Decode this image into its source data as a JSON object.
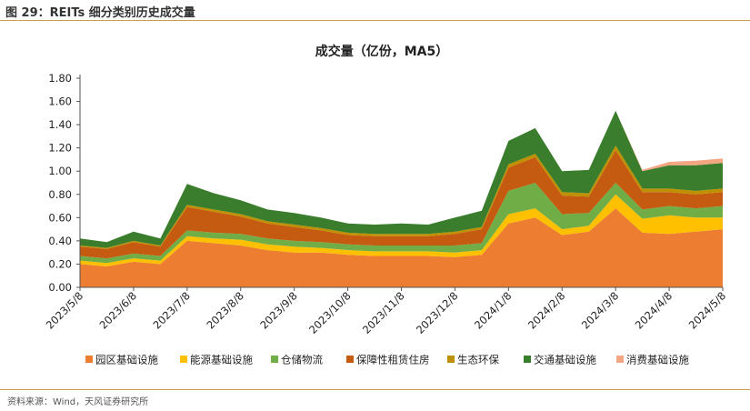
{
  "figure_caption": "图 29：REITs 细分类别历史成交量",
  "source_note": "资料来源：Wind，天风证券研究所",
  "chart_data": {
    "type": "area",
    "stacked": true,
    "title": "成交量（亿份，MA5）",
    "xlabel": "",
    "ylabel": "",
    "ylim": [
      0,
      1.8
    ],
    "yticks": [
      "0.00",
      "0.20",
      "0.40",
      "0.60",
      "0.80",
      "1.00",
      "1.20",
      "1.40",
      "1.60",
      "1.80"
    ],
    "xticks": [
      "2023/5/8",
      "2023/6/8",
      "2023/7/8",
      "2023/8/8",
      "2023/9/8",
      "2023/10/8",
      "2023/11/8",
      "2023/12/8",
      "2024/1/8",
      "2024/2/8",
      "2024/3/8",
      "2024/4/8",
      "2024/5/8"
    ],
    "legend_position": "bottom",
    "grid": false,
    "x": [
      "2023/5/8",
      "2023/5/22",
      "2023/6/8",
      "2023/6/22",
      "2023/7/8",
      "2023/7/22",
      "2023/8/8",
      "2023/8/22",
      "2023/9/8",
      "2023/9/22",
      "2023/10/8",
      "2023/10/22",
      "2023/11/8",
      "2023/11/22",
      "2023/12/8",
      "2023/12/22",
      "2024/1/8",
      "2024/1/22",
      "2024/2/8",
      "2024/2/22",
      "2024/3/8",
      "2024/3/22",
      "2024/4/8",
      "2024/4/22",
      "2024/5/8"
    ],
    "series": [
      {
        "name": "园区基础设施",
        "color": "#ED7D31",
        "values": [
          0.2,
          0.18,
          0.22,
          0.2,
          0.4,
          0.38,
          0.36,
          0.32,
          0.3,
          0.3,
          0.28,
          0.27,
          0.27,
          0.27,
          0.26,
          0.28,
          0.55,
          0.6,
          0.45,
          0.48,
          0.68,
          0.47,
          0.46,
          0.48,
          0.5
        ]
      },
      {
        "name": "能源基础设施",
        "color": "#FFC000",
        "values": [
          0.03,
          0.03,
          0.03,
          0.03,
          0.04,
          0.04,
          0.05,
          0.05,
          0.05,
          0.04,
          0.04,
          0.04,
          0.04,
          0.04,
          0.04,
          0.04,
          0.08,
          0.08,
          0.05,
          0.05,
          0.12,
          0.12,
          0.16,
          0.12,
          0.1
        ]
      },
      {
        "name": "仓储物流",
        "color": "#70AD47",
        "values": [
          0.04,
          0.04,
          0.04,
          0.04,
          0.05,
          0.05,
          0.05,
          0.05,
          0.05,
          0.05,
          0.05,
          0.05,
          0.05,
          0.05,
          0.06,
          0.06,
          0.2,
          0.22,
          0.13,
          0.11,
          0.1,
          0.08,
          0.08,
          0.08,
          0.1
        ]
      },
      {
        "name": "保障性租赁住房",
        "color": "#C55A11",
        "values": [
          0.08,
          0.08,
          0.1,
          0.08,
          0.2,
          0.18,
          0.15,
          0.13,
          0.12,
          0.1,
          0.08,
          0.08,
          0.08,
          0.08,
          0.1,
          0.12,
          0.2,
          0.22,
          0.16,
          0.14,
          0.28,
          0.15,
          0.12,
          0.12,
          0.12
        ]
      },
      {
        "name": "生态环保",
        "color": "#BF9000",
        "values": [
          0.01,
          0.01,
          0.01,
          0.01,
          0.02,
          0.02,
          0.02,
          0.02,
          0.02,
          0.02,
          0.02,
          0.02,
          0.02,
          0.02,
          0.02,
          0.02,
          0.03,
          0.03,
          0.03,
          0.03,
          0.04,
          0.03,
          0.03,
          0.03,
          0.03
        ]
      },
      {
        "name": "交通基础设施",
        "color": "#3A7D2C",
        "values": [
          0.06,
          0.05,
          0.08,
          0.06,
          0.18,
          0.14,
          0.12,
          0.1,
          0.1,
          0.09,
          0.08,
          0.08,
          0.09,
          0.08,
          0.12,
          0.14,
          0.2,
          0.22,
          0.18,
          0.2,
          0.3,
          0.15,
          0.2,
          0.22,
          0.22
        ]
      },
      {
        "name": "消费基础设施",
        "color": "#F4A582",
        "values": [
          0,
          0,
          0,
          0,
          0,
          0,
          0,
          0,
          0,
          0,
          0,
          0,
          0,
          0,
          0,
          0,
          0,
          0,
          0,
          0,
          0,
          0.01,
          0.03,
          0.04,
          0.04
        ]
      }
    ]
  }
}
